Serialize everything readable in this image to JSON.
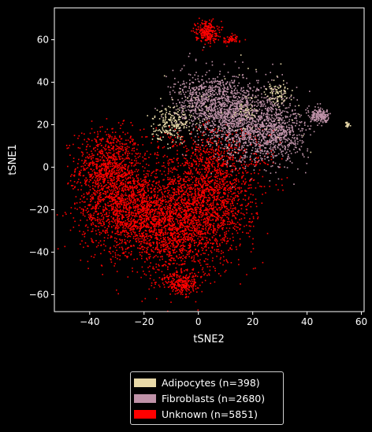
{
  "chart_data": {
    "type": "scatter",
    "title": "",
    "xlabel": "tSNE2",
    "ylabel": "tSNE1",
    "xlim": [
      -53,
      61
    ],
    "ylim": [
      -68,
      75
    ],
    "xticks": [
      -40,
      -20,
      0,
      20,
      40,
      60
    ],
    "yticks": [
      -60,
      -40,
      -20,
      0,
      20,
      40,
      60
    ],
    "background": "#000000",
    "grid": false,
    "legend_position": "below",
    "series": [
      {
        "name": "Adipocytes (n=398)",
        "color": "#e8d9a8",
        "count": 398,
        "clusters": [
          {
            "cx": -10,
            "cy": 21,
            "sx": 3.5,
            "sy": 4,
            "share": 0.5
          },
          {
            "cx": 29,
            "cy": 35,
            "sx": 2,
            "sy": 2.5,
            "share": 0.2
          },
          {
            "cx": 18,
            "cy": 26,
            "sx": 2,
            "sy": 2,
            "share": 0.08
          },
          {
            "cx": 55,
            "cy": 20,
            "sx": 0.4,
            "sy": 0.6,
            "share": 0.05
          },
          {
            "cx": 10,
            "cy": 25,
            "sx": 14,
            "sy": 12,
            "share": 0.17
          }
        ]
      },
      {
        "name": "Fibroblasts (n=2680)",
        "color": "#bf92a8",
        "count": 2680,
        "clusters": [
          {
            "cx": 5,
            "cy": 30,
            "sx": 7,
            "sy": 7,
            "share": 0.35
          },
          {
            "cx": 20,
            "cy": 20,
            "sx": 8,
            "sy": 9,
            "share": 0.45
          },
          {
            "cx": 30,
            "cy": 15,
            "sx": 5,
            "sy": 6,
            "share": 0.13
          },
          {
            "cx": 45,
            "cy": 24,
            "sx": 2,
            "sy": 1.5,
            "share": 0.07
          }
        ]
      },
      {
        "name": "Unknown (n=5851)",
        "color": "#ff0000",
        "count": 5851,
        "clusters": [
          {
            "cx": -33,
            "cy": 0,
            "sx": 6,
            "sy": 9,
            "share": 0.15
          },
          {
            "cx": -25,
            "cy": -20,
            "sx": 9,
            "sy": 10,
            "share": 0.25
          },
          {
            "cx": -8,
            "cy": -30,
            "sx": 9,
            "sy": 12,
            "share": 0.23
          },
          {
            "cx": 5,
            "cy": -15,
            "sx": 8,
            "sy": 12,
            "share": 0.2
          },
          {
            "cx": -6,
            "cy": -55,
            "sx": 3,
            "sy": 2.5,
            "share": 0.04
          },
          {
            "cx": 3,
            "cy": 64,
            "sx": 2,
            "sy": 2.5,
            "share": 0.04
          },
          {
            "cx": 12,
            "cy": 60,
            "sx": 2,
            "sy": 1,
            "share": 0.01
          },
          {
            "cx": 5,
            "cy": 5,
            "sx": 12,
            "sy": 8,
            "share": 0.08
          }
        ]
      }
    ]
  }
}
